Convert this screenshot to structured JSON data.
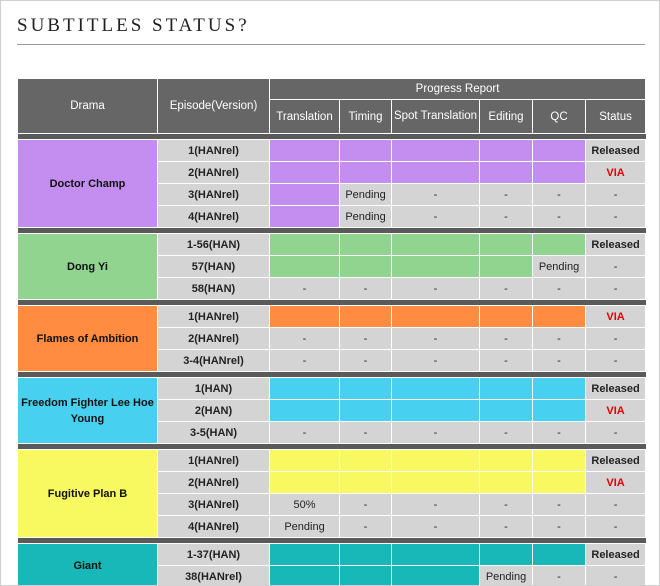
{
  "title": "SUBTITLES STATUS?",
  "headers": {
    "drama": "Drama",
    "episode": "Episode(Version)",
    "progress": "Progress Report",
    "cols": [
      "Translation",
      "Timing",
      "Spot Translation",
      "Editing",
      "QC",
      "Status"
    ]
  },
  "dramas": [
    {
      "name": "Doctor Champ",
      "color": "#c48ef0",
      "rows": [
        {
          "ep": "1(HANrel)",
          "cells": [
            "",
            "",
            "",
            "",
            ""
          ],
          "fill": [
            true,
            true,
            true,
            true,
            true
          ],
          "status": "Released",
          "status_type": "released"
        },
        {
          "ep": "2(HANrel)",
          "cells": [
            "",
            "",
            "",
            "",
            ""
          ],
          "fill": [
            true,
            true,
            true,
            true,
            true
          ],
          "status": "VIA",
          "status_type": "via"
        },
        {
          "ep": "3(HANrel)",
          "cells": [
            "",
            "Pending",
            "-",
            "-",
            "-"
          ],
          "fill": [
            true,
            false,
            false,
            false,
            false
          ],
          "status": "-",
          "status_type": "plain"
        },
        {
          "ep": "4(HANrel)",
          "cells": [
            "",
            "Pending",
            "-",
            "-",
            "-"
          ],
          "fill": [
            true,
            false,
            false,
            false,
            false
          ],
          "status": "-",
          "status_type": "plain"
        }
      ]
    },
    {
      "name": "Dong Yi",
      "color": "#90d490",
      "rows": [
        {
          "ep": "1-56(HAN)",
          "cells": [
            "",
            "",
            "",
            "",
            ""
          ],
          "fill": [
            true,
            true,
            true,
            true,
            true
          ],
          "status": "Released",
          "status_type": "released"
        },
        {
          "ep": "57(HAN)",
          "cells": [
            "",
            "",
            "",
            "",
            "Pending"
          ],
          "fill": [
            true,
            true,
            true,
            true,
            false
          ],
          "status": "-",
          "status_type": "plain"
        },
        {
          "ep": "58(HAN)",
          "cells": [
            "-",
            "-",
            "-",
            "-",
            "-"
          ],
          "fill": [
            false,
            false,
            false,
            false,
            false
          ],
          "status": "-",
          "status_type": "plain"
        }
      ]
    },
    {
      "name": "Flames of Ambition",
      "color": "#ff8c40",
      "rows": [
        {
          "ep": "1(HANrel)",
          "cells": [
            "",
            "",
            "",
            "",
            ""
          ],
          "fill": [
            true,
            true,
            true,
            true,
            true
          ],
          "status": "VIA",
          "status_type": "via"
        },
        {
          "ep": "2(HANrel)",
          "cells": [
            "-",
            "-",
            "-",
            "-",
            "-"
          ],
          "fill": [
            false,
            false,
            false,
            false,
            false
          ],
          "status": "-",
          "status_type": "plain"
        },
        {
          "ep": "3-4(HANrel)",
          "cells": [
            "-",
            "-",
            "-",
            "-",
            "-"
          ],
          "fill": [
            false,
            false,
            false,
            false,
            false
          ],
          "status": "-",
          "status_type": "plain"
        }
      ]
    },
    {
      "name": "Freedom Fighter Lee Hoe Young",
      "color": "#48d0f0",
      "rows": [
        {
          "ep": "1(HAN)",
          "cells": [
            "",
            "",
            "",
            "",
            ""
          ],
          "fill": [
            true,
            true,
            true,
            true,
            true
          ],
          "status": "Released",
          "status_type": "released"
        },
        {
          "ep": "2(HAN)",
          "cells": [
            "",
            "",
            "",
            "",
            ""
          ],
          "fill": [
            true,
            true,
            true,
            true,
            true
          ],
          "status": "VIA",
          "status_type": "via"
        },
        {
          "ep": "3-5(HAN)",
          "cells": [
            "-",
            "-",
            "-",
            "-",
            "-"
          ],
          "fill": [
            false,
            false,
            false,
            false,
            false
          ],
          "status": "-",
          "status_type": "plain"
        }
      ]
    },
    {
      "name": "Fugitive Plan B",
      "color": "#f8f860",
      "rows": [
        {
          "ep": "1(HANrel)",
          "cells": [
            "",
            "",
            "",
            "",
            ""
          ],
          "fill": [
            true,
            true,
            true,
            true,
            true
          ],
          "status": "Released",
          "status_type": "released"
        },
        {
          "ep": "2(HANrel)",
          "cells": [
            "",
            "",
            "",
            "",
            ""
          ],
          "fill": [
            true,
            true,
            true,
            true,
            true
          ],
          "status": "VIA",
          "status_type": "via"
        },
        {
          "ep": "3(HANrel)",
          "cells": [
            "50%",
            "-",
            "-",
            "-",
            "-"
          ],
          "fill": [
            false,
            false,
            false,
            false,
            false
          ],
          "status": "-",
          "status_type": "plain"
        },
        {
          "ep": "4(HANrel)",
          "cells": [
            "Pending",
            "-",
            "-",
            "-",
            "-"
          ],
          "fill": [
            false,
            false,
            false,
            false,
            false
          ],
          "status": "-",
          "status_type": "plain"
        }
      ]
    },
    {
      "name": "Giant",
      "color": "#18b8b8",
      "rows": [
        {
          "ep": "1-37(HAN)",
          "cells": [
            "",
            "",
            "",
            "",
            ""
          ],
          "fill": [
            true,
            true,
            true,
            true,
            true
          ],
          "status": "Released",
          "status_type": "released"
        },
        {
          "ep": "38(HANrel)",
          "cells": [
            "",
            "",
            "",
            "Pending",
            "-"
          ],
          "fill": [
            true,
            true,
            true,
            false,
            false
          ],
          "status": "-",
          "status_type": "plain"
        }
      ]
    }
  ]
}
